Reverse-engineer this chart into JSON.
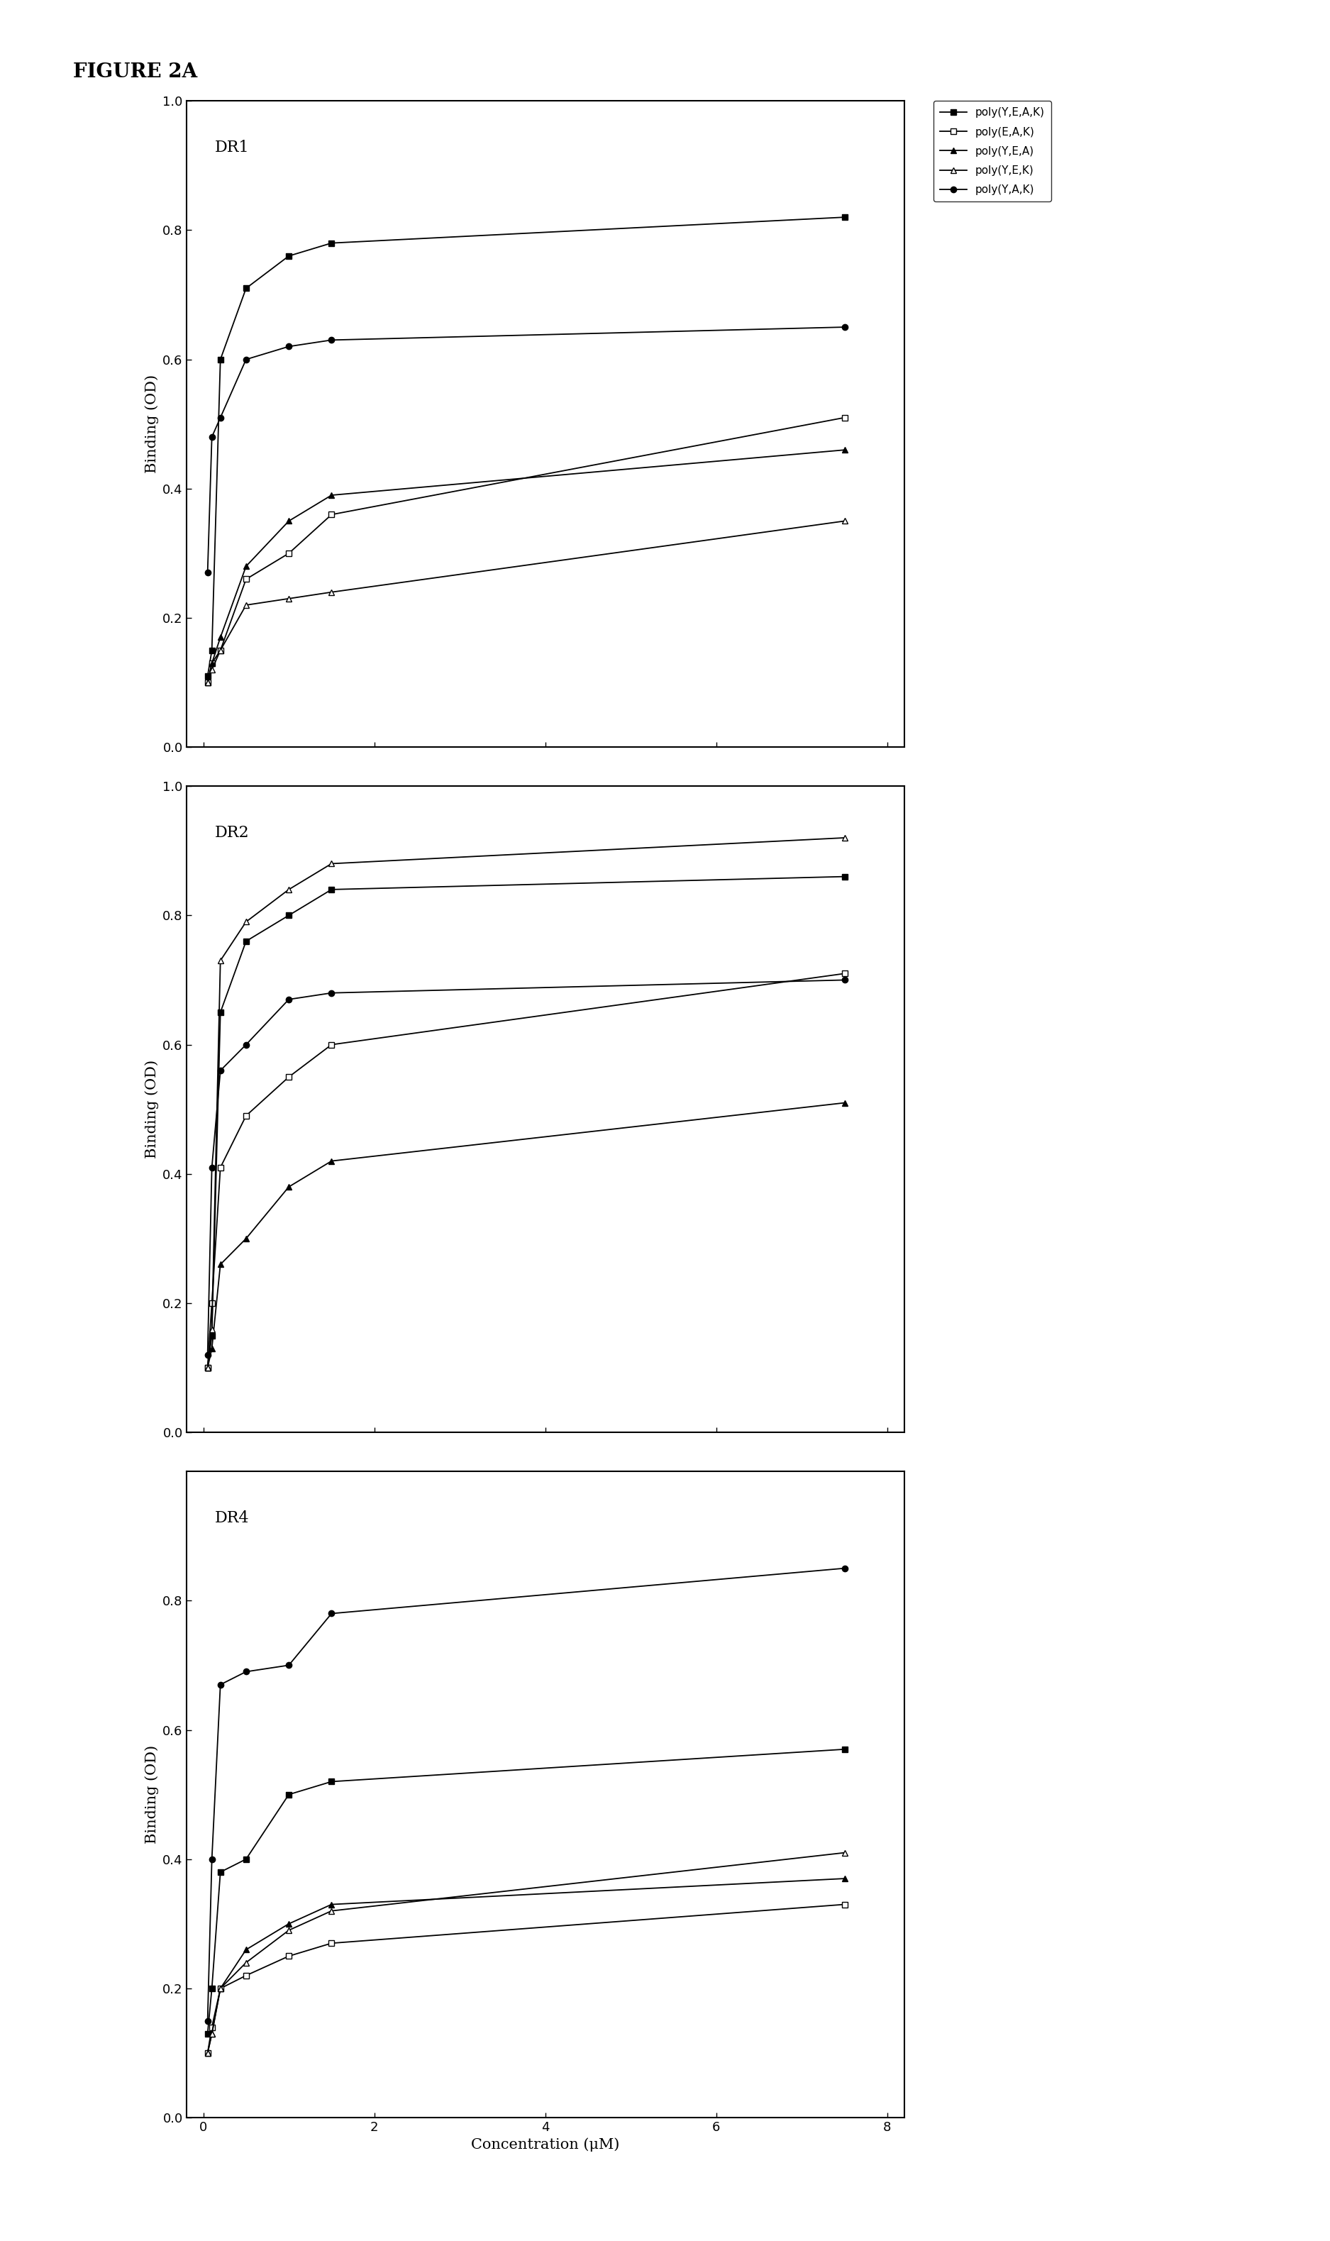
{
  "figure_title": "FIGURE 2A",
  "xlabel": "Concentration (μM)",
  "ylabel": "Binding (OD)",
  "x_values": [
    0.05,
    0.1,
    0.2,
    0.5,
    1.0,
    1.5,
    7.5
  ],
  "plots": [
    {
      "title": "DR1",
      "ylim": [
        0.0,
        1.0
      ],
      "yticks": [
        0.0,
        0.2,
        0.4,
        0.6,
        0.8,
        1.0
      ],
      "series": [
        {
          "label": "poly(Y,E,A,K)",
          "marker": "s",
          "fillstyle": "full",
          "y": [
            0.11,
            0.15,
            0.6,
            0.71,
            0.76,
            0.78,
            0.82
          ]
        },
        {
          "label": "poly(E,A,K)",
          "marker": "s",
          "fillstyle": "none",
          "y": [
            0.1,
            0.13,
            0.15,
            0.26,
            0.3,
            0.36,
            0.51
          ]
        },
        {
          "label": "poly(Y,E,A)",
          "marker": "^",
          "fillstyle": "full",
          "y": [
            0.1,
            0.13,
            0.17,
            0.28,
            0.35,
            0.39,
            0.46
          ]
        },
        {
          "label": "poly(Y,E,K)",
          "marker": "^",
          "fillstyle": "none",
          "y": [
            0.1,
            0.12,
            0.15,
            0.22,
            0.23,
            0.24,
            0.35
          ]
        },
        {
          "label": "poly(Y,A,K)",
          "marker": "o",
          "fillstyle": "full",
          "y": [
            0.27,
            0.48,
            0.51,
            0.6,
            0.62,
            0.63,
            0.65
          ]
        }
      ]
    },
    {
      "title": "DR2",
      "ylim": [
        0.0,
        1.0
      ],
      "yticks": [
        0.0,
        0.2,
        0.4,
        0.6,
        0.8,
        1.0
      ],
      "series": [
        {
          "label": "poly(Y,E,A,K)",
          "marker": "s",
          "fillstyle": "full",
          "y": [
            0.1,
            0.15,
            0.65,
            0.76,
            0.8,
            0.84,
            0.86
          ]
        },
        {
          "label": "poly(E,A,K)",
          "marker": "s",
          "fillstyle": "none",
          "y": [
            0.1,
            0.2,
            0.41,
            0.49,
            0.55,
            0.6,
            0.71
          ]
        },
        {
          "label": "poly(Y,E,A)",
          "marker": "^",
          "fillstyle": "full",
          "y": [
            0.1,
            0.13,
            0.26,
            0.3,
            0.38,
            0.42,
            0.51
          ]
        },
        {
          "label": "poly(Y,E,K)",
          "marker": "^",
          "fillstyle": "none",
          "y": [
            0.1,
            0.16,
            0.73,
            0.79,
            0.84,
            0.88,
            0.92
          ]
        },
        {
          "label": "poly(Y,A,K)",
          "marker": "o",
          "fillstyle": "full",
          "y": [
            0.12,
            0.41,
            0.56,
            0.6,
            0.67,
            0.68,
            0.7
          ]
        }
      ]
    },
    {
      "title": "DR4",
      "ylim": [
        0.0,
        1.0
      ],
      "yticks": [
        0.0,
        0.2,
        0.4,
        0.6,
        0.8
      ],
      "series": [
        {
          "label": "poly(Y,E,A,K)",
          "marker": "s",
          "fillstyle": "full",
          "y": [
            0.13,
            0.2,
            0.38,
            0.4,
            0.5,
            0.52,
            0.57
          ]
        },
        {
          "label": "poly(E,A,K)",
          "marker": "s",
          "fillstyle": "none",
          "y": [
            0.1,
            0.14,
            0.2,
            0.22,
            0.25,
            0.27,
            0.33
          ]
        },
        {
          "label": "poly(Y,E,A)",
          "marker": "^",
          "fillstyle": "full",
          "y": [
            0.1,
            0.13,
            0.2,
            0.26,
            0.3,
            0.33,
            0.37
          ]
        },
        {
          "label": "poly(Y,E,K)",
          "marker": "^",
          "fillstyle": "none",
          "y": [
            0.1,
            0.13,
            0.2,
            0.24,
            0.29,
            0.32,
            0.41
          ]
        },
        {
          "label": "poly(Y,A,K)",
          "marker": "o",
          "fillstyle": "full",
          "y": [
            0.15,
            0.4,
            0.67,
            0.69,
            0.7,
            0.78,
            0.85
          ]
        }
      ]
    }
  ],
  "legend_labels": [
    "poly(Y,E,A,K)",
    "poly(E,A,K)",
    "poly(Y,E,A)",
    "poly(Y,E,K)",
    "poly(Y,A,K)"
  ],
  "legend_markers": [
    "s",
    "s",
    "^",
    "^",
    "o"
  ],
  "legend_fillstyles": [
    "full",
    "none",
    "full",
    "none",
    "full"
  ],
  "color": "black",
  "linewidth": 1.3,
  "markersize": 6
}
